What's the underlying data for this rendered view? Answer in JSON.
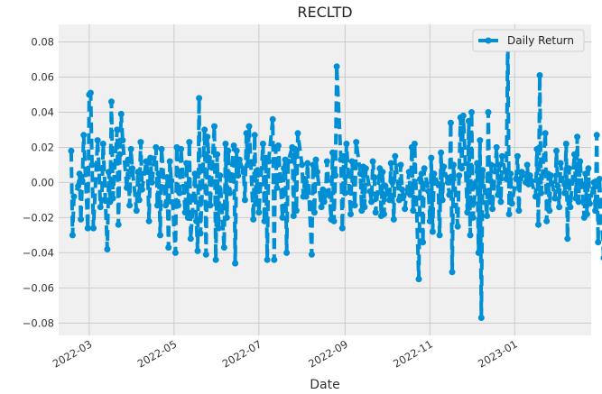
{
  "chart_data": {
    "type": "line",
    "title": "RECLTD",
    "xlabel": "Date",
    "ylabel": "",
    "xlim": [
      "2022-02-07",
      "2023-02-25"
    ],
    "ylim": [
      -0.087,
      0.09
    ],
    "x_ticks": [
      "2022-03-01",
      "2022-05-01",
      "2022-07-01",
      "2022-09-01",
      "2022-11-01",
      "2023-01-01"
    ],
    "x_tick_labels": [
      "2022-03",
      "2022-05",
      "2022-07",
      "2022-09",
      "2022-11",
      "2023-01"
    ],
    "y_ticks": [
      -0.08,
      -0.06,
      -0.04,
      -0.02,
      0.0,
      0.02,
      0.04,
      0.06,
      0.08
    ],
    "y_tick_labels": [
      "−0.08",
      "−0.06",
      "−0.04",
      "−0.02",
      "0.00",
      "0.02",
      "0.04",
      "0.06",
      "0.08"
    ],
    "grid": true,
    "legend_position": "top-right",
    "line_style": "dashed",
    "marker": "circle",
    "color": "#008fd5",
    "series": [
      {
        "name": "Daily Return",
        "start_date": "2022-02-16",
        "values": [
          0.018,
          -0.03,
          -0.008,
          -0.002,
          0.005,
          -0.021,
          0.001,
          0.027,
          -0.026,
          0.05,
          0.051,
          0.01,
          -0.026,
          0.024,
          0.008,
          -0.014,
          -0.01,
          0.022,
          -0.038,
          0.006,
          -0.011,
          0.046,
          -0.009,
          0.03,
          -0.024,
          0.016,
          0.039,
          0.024,
          -0.003,
          0.013,
          -0.013,
          0.019,
          0.008,
          -0.016,
          0.006,
          -0.01,
          0.023,
          -0.004,
          0.012,
          0.006,
          -0.022,
          0.014,
          0.0,
          0.02,
          -0.013,
          0.005,
          -0.03,
          0.019,
          -0.013,
          0.003,
          -0.037,
          0.012,
          0.001,
          -0.04,
          0.02,
          -0.013,
          -0.006,
          0.019,
          -0.017,
          0.011,
          -0.02,
          0.023,
          -0.032,
          0.005,
          -0.022,
          -0.039,
          0.048,
          -0.029,
          0.03,
          -0.041,
          0.026,
          0.014,
          -0.013,
          0.032,
          -0.044,
          0.016,
          -0.026,
          0.004,
          -0.037,
          0.022,
          -0.02,
          0.018,
          -0.006,
          0.021,
          -0.046,
          0.018,
          0.004,
          0.013,
          0.006,
          -0.01,
          0.028,
          0.01,
          0.032,
          -0.021,
          0.027,
          -0.012,
          0.007,
          -0.017,
          0.022,
          -0.022,
          0.014,
          -0.044,
          0.012,
          0.036,
          -0.044,
          0.02,
          -0.003,
          0.021,
          -0.02,
          0.008,
          0.013,
          -0.04,
          0.012,
          0.02,
          -0.019,
          0.019,
          -0.016,
          0.028,
          0.01,
          -0.008,
          0.002,
          -0.008,
          0.011,
          -0.041,
          0.01,
          -0.017,
          0.013,
          0.006,
          -0.014,
          -0.004,
          -0.011,
          -0.007,
          0.012,
          -0.021,
          0.017,
          -0.022,
          0.004,
          0.066,
          0.013,
          -0.026,
          0.015,
          -0.006,
          0.022,
          -0.018,
          0.012,
          0.001,
          -0.013,
          0.023,
          0.005,
          -0.016,
          0.009,
          -0.014,
          0.008,
          -0.005,
          -0.011,
          0.012,
          0.003,
          -0.017,
          0.008,
          -0.019,
          0.006,
          -0.018,
          -0.002,
          -0.01,
          0.011,
          0.0,
          -0.021,
          0.015,
          -0.01,
          0.01,
          -0.004,
          -0.008,
          -0.015,
          0.006,
          -0.007,
          0.02,
          -0.016,
          0.022,
          -0.055,
          0.002,
          0.005,
          -0.034,
          0.008,
          -0.005,
          -0.022,
          0.014,
          -0.028,
          0.005,
          -0.001,
          -0.03,
          0.017,
          -0.01,
          0.009,
          0.0,
          -0.007,
          0.034,
          -0.051,
          0.01,
          -0.025,
          0.004,
          0.037,
          0.008,
          0.038,
          -0.017,
          0.035,
          -0.03,
          0.04,
          -0.02,
          0.011,
          -0.04,
          0.024,
          -0.077,
          0.007,
          -0.019,
          0.04,
          -0.011,
          0.01,
          -0.015,
          0.02,
          -0.007,
          0.01,
          -0.011,
          0.015,
          0.002,
          0.081,
          -0.018,
          0.005,
          -0.012,
          0.002,
          0.015,
          -0.016,
          0.002,
          0.006,
          0.0,
          0.01,
          -0.001,
          0.004,
          0.001,
          -0.008,
          0.019,
          -0.024,
          0.061,
          -0.006,
          0.028,
          -0.022,
          0.005,
          -0.016,
          0.004,
          -0.009,
          0.018,
          -0.002,
          -0.014,
          0.011,
          -0.006,
          0.022,
          -0.032,
          0.008,
          -0.014,
          0.016,
          -0.009,
          0.026,
          -0.011,
          0.012,
          -0.02,
          0.005,
          -0.018,
          0.008,
          -0.012,
          0.0,
          -0.016,
          0.027,
          -0.034,
          0.002,
          -0.043,
          0.011,
          -0.002,
          -0.024,
          0.01,
          -0.008,
          0.004,
          0.016,
          -0.003,
          0.022,
          -0.007,
          0.002,
          -0.014,
          0.009,
          -0.019,
          0.035,
          -0.006,
          0.017,
          -0.012,
          0.03,
          -0.022,
          0.004,
          -0.016,
          0.022,
          -0.018,
          0.01,
          0.047,
          -0.025,
          0.019,
          -0.011,
          0.041,
          -0.011,
          0.0
        ]
      }
    ]
  }
}
